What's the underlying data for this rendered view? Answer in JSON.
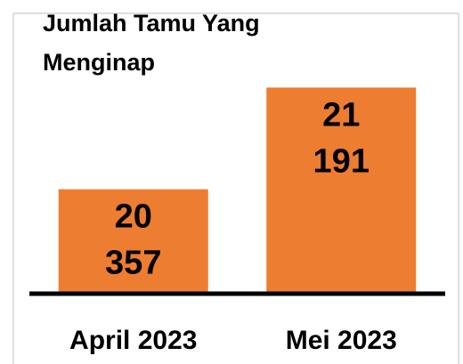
{
  "chart_data": {
    "type": "bar",
    "title": "Jumlah Tamu Yang Menginap",
    "categories": [
      "April 2023",
      "Mei 2023"
    ],
    "values": [
      20357,
      21191
    ],
    "value_labels": [
      "20 357",
      "21 191"
    ],
    "color": "#ed7d31",
    "ylim": [
      19500,
      21800
    ]
  }
}
